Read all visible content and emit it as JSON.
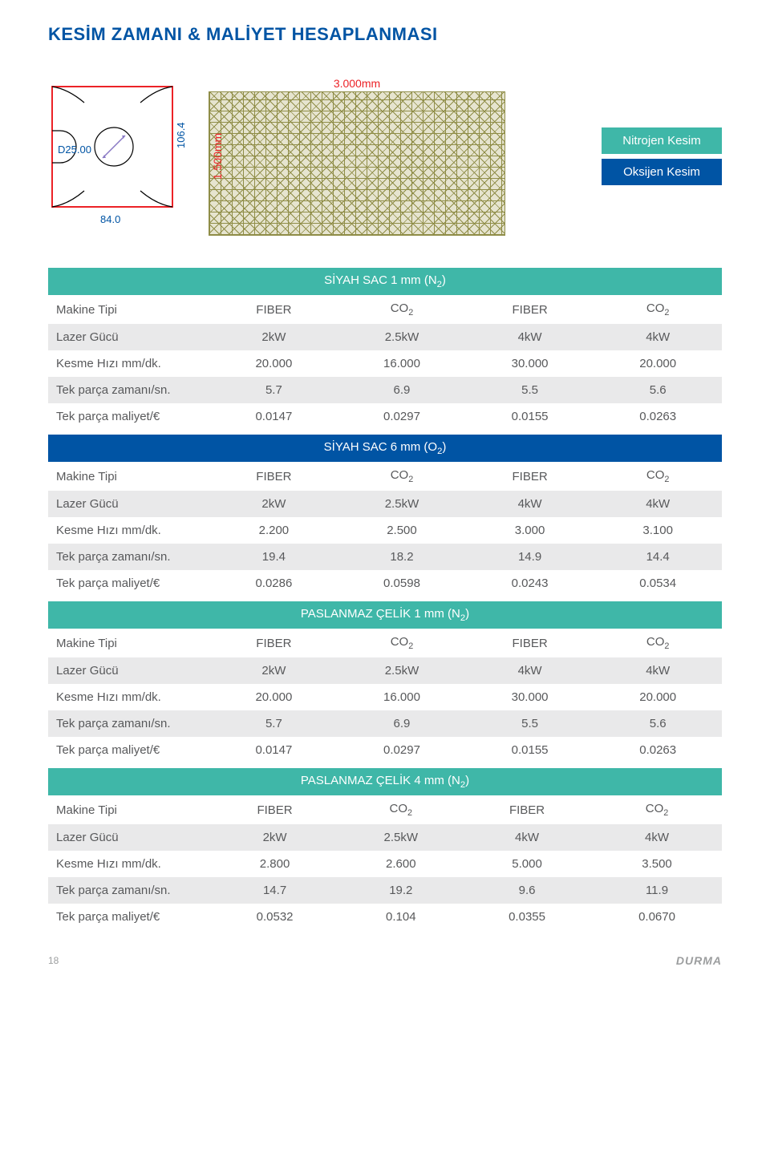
{
  "title": "KESİM ZAMANI & MALİYET HESAPLANMASI",
  "part": {
    "d_label": "D25.00",
    "height_label": "106.4",
    "width_label": "84.0"
  },
  "sheet": {
    "width_label": "3.000mm",
    "height_label": "1.500mm"
  },
  "legend": {
    "nitrogen": {
      "label": "Nitrojen Kesim",
      "color": "#3fb7a8"
    },
    "oxygen": {
      "label": "Oksijen Kesim",
      "color": "#0054a4"
    }
  },
  "row_labels": {
    "machine": "Makine Tipi",
    "power": "Lazer Gücü",
    "speed": "Kesme Hızı mm/dk.",
    "time": "Tek parça zamanı/sn.",
    "cost": "Tek parça maliyet/€"
  },
  "col_specials": {
    "fiber": "FIBER",
    "co2_prefix": "CO",
    "co2_sub": "2"
  },
  "tables": [
    {
      "title_prefix": "SİYAH SAC 1 mm (N",
      "title_sub": "2",
      "title_suffix": ")",
      "color": "#3fb7a8",
      "power": [
        "2kW",
        "2.5kW",
        "4kW",
        "4kW"
      ],
      "speed": [
        "20.000",
        "16.000",
        "30.000",
        "20.000"
      ],
      "time": [
        "5.7",
        "6.9",
        "5.5",
        "5.6"
      ],
      "cost": [
        "0.0147",
        "0.0297",
        "0.0155",
        "0.0263"
      ]
    },
    {
      "title_prefix": "SİYAH SAC 6 mm (O",
      "title_sub": "2",
      "title_suffix": ")",
      "color": "#0054a4",
      "power": [
        "2kW",
        "2.5kW",
        "4kW",
        "4kW"
      ],
      "speed": [
        "2.200",
        "2.500",
        "3.000",
        "3.100"
      ],
      "time": [
        "19.4",
        "18.2",
        "14.9",
        "14.4"
      ],
      "cost": [
        "0.0286",
        "0.0598",
        "0.0243",
        "0.0534"
      ]
    },
    {
      "title_prefix": "PASLANMAZ ÇELİK 1 mm (N",
      "title_sub": "2",
      "title_suffix": ")",
      "color": "#3fb7a8",
      "power": [
        "2kW",
        "2.5kW",
        "4kW",
        "4kW"
      ],
      "speed": [
        "20.000",
        "16.000",
        "30.000",
        "20.000"
      ],
      "time": [
        "5.7",
        "6.9",
        "5.5",
        "5.6"
      ],
      "cost": [
        "0.0147",
        "0.0297",
        "0.0155",
        "0.0263"
      ]
    },
    {
      "title_prefix": "PASLANMAZ ÇELİK 4 mm (N",
      "title_sub": "2",
      "title_suffix": ")",
      "color": "#3fb7a8",
      "power": [
        "2kW",
        "2.5kW",
        "4kW",
        "4kW"
      ],
      "speed": [
        "2.800",
        "2.600",
        "5.000",
        "3.500"
      ],
      "time": [
        "14.7",
        "19.2",
        "9.6",
        "11.9"
      ],
      "cost": [
        "0.0532",
        "0.104",
        "0.0355",
        "0.0670"
      ]
    }
  ],
  "footer": {
    "page": "18",
    "brand": "DURMA"
  }
}
